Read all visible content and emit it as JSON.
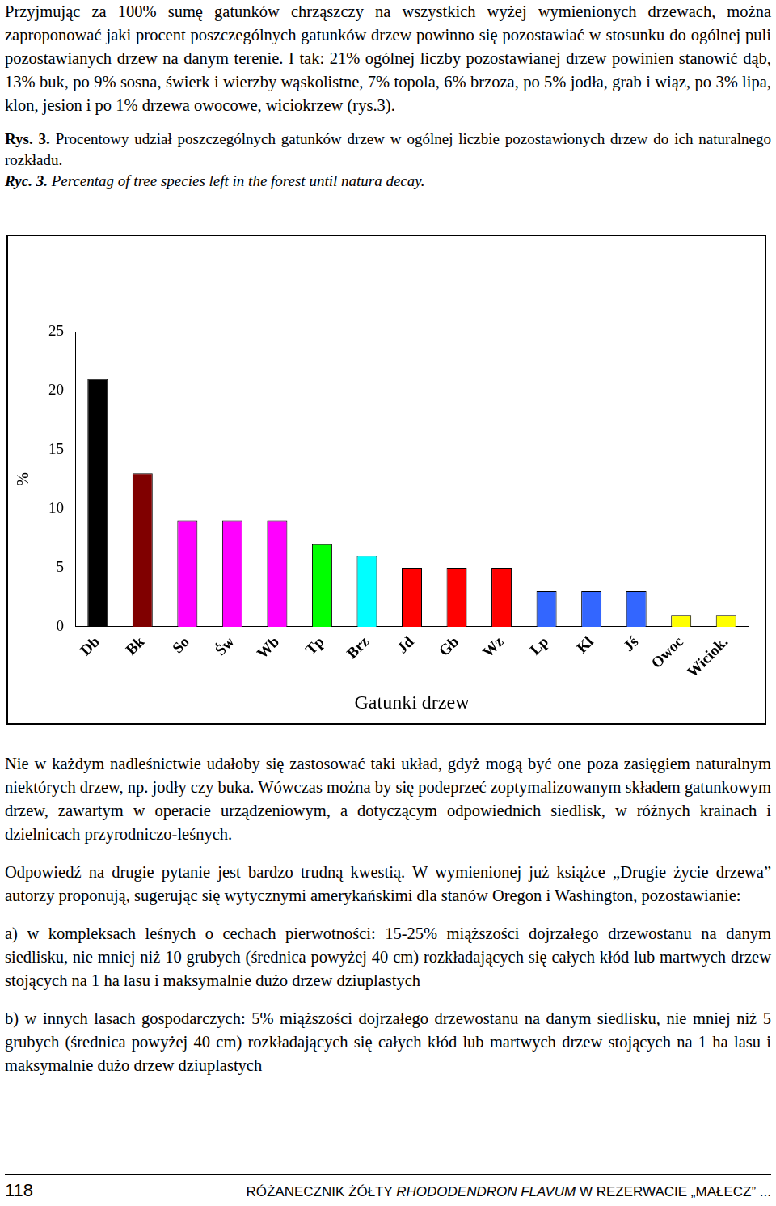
{
  "page": {
    "paragraphs_before": [
      "Przyjmując za 100% sumę gatunków chrząszczy na wszystkich wyżej wymienionych drzewach, można zaproponować jaki procent poszczególnych gatunków drzew powinno się pozostawiać w stosunku do ogólnej puli pozostawianych drzew na danym terenie. I tak: 21% ogólnej liczby pozostawianej drzew powinien stanowić dąb, 13% buk, po 9% sosna, świerk i wierzby wąskolistne, 7% topola, 6% brzoza, po 5% jodła, grab i wiąz, po 3% lipa, klon, jesion i po 1% drzewa owocowe, wiciokrzew (rys.3)."
    ],
    "caption": {
      "label": "Rys. 3.",
      "text": "Procentowy udział poszczególnych gatunków drzew w ogólnej liczbie pozostawionych drzew do ich naturalnego rozkładu."
    },
    "caption_en": {
      "label": "Ryc. 3.",
      "text": "Percentag of tree species left in the forest until natura decay."
    },
    "paragraphs_after": [
      "Nie w każdym nadleśnictwie udałoby się zastosować taki układ, gdyż mogą być one poza zasięgiem naturalnym niektórych drzew, np. jodły czy buka. Wówczas można by się podeprzeć zoptymalizowanym składem gatunkowym drzew, zawartym w operacie urządzeniowym, a dotyczącym odpowiednich siedlisk, w różnych krainach i dzielnicach przyrodniczo-leśnych.",
      "Odpowiedź na drugie pytanie jest bardzo trudną kwestią. W wymienionej już książce „Drugie życie drzewa” autorzy proponują, sugerując się wytycznymi amerykańskimi dla stanów Oregon i Washington, pozostawianie:",
      "a) w kompleksach leśnych o cechach pierwotności: 15-25% miąższości dojrzałego drzewostanu na danym siedlisku, nie mniej niż 10 grubych (średnica powyżej 40 cm) rozkładających się całych kłód lub martwych drzew stojących na 1 ha lasu i maksymalnie dużo drzew dziuplastych",
      "b) w innych lasach gospodarczych: 5% miąższości dojrzałego drzewostanu na danym siedlisku, nie mniej niż 5 grubych (średnica powyżej 40 cm) rozkładających się całych kłód lub martwych drzew stojących na 1 ha lasu i maksymalnie dużo drzew dziuplastych"
    ],
    "footer": {
      "page_number": "118",
      "running_title": [
        "RÓŻANECZNIK ŻÓŁTY ",
        "RHODODENDRON FLAVUM",
        " W REZERWACIE „MAŁECZ” ..."
      ]
    }
  },
  "chart_data": {
    "type": "bar",
    "x_label": "Gatunki drzew",
    "y_label": "%",
    "categories": [
      "Db",
      "Bk",
      "So",
      "Św",
      "Wb",
      "Tp",
      "Brz",
      "Jd",
      "Gb",
      "Wz",
      "Lp",
      "Kl",
      "Jś",
      "Owoc",
      "Wiciok."
    ],
    "values": [
      21,
      13,
      9,
      9,
      9,
      7,
      6,
      5,
      5,
      5,
      3,
      3,
      3,
      1,
      1
    ],
    "colors": [
      "#000000",
      "#800000",
      "#ff00ff",
      "#ff00ff",
      "#ff00ff",
      "#00ff00",
      "#00ffff",
      "#ff0000",
      "#ff0000",
      "#ff0000",
      "#3366ff",
      "#3366ff",
      "#3366ff",
      "#ffff00",
      "#ffff00"
    ],
    "ylim": [
      0,
      25
    ],
    "yticks": [
      0,
      5,
      10,
      15,
      20,
      25
    ],
    "grid": false
  }
}
